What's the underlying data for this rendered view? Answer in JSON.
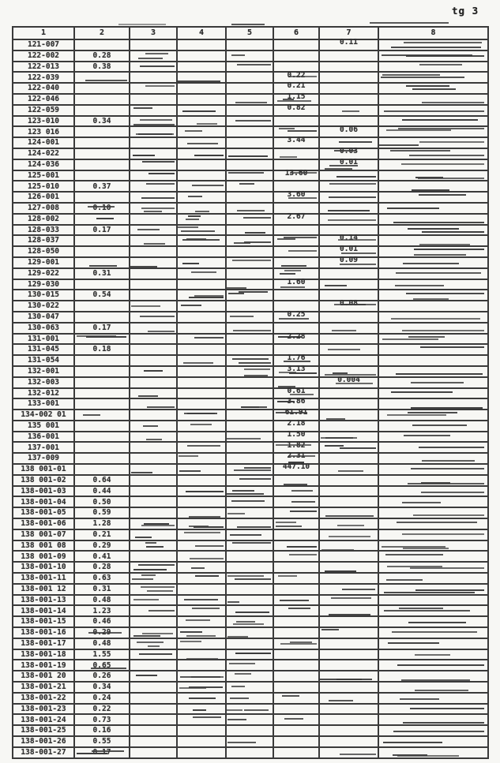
{
  "page": {
    "corner_label": "tg 3"
  },
  "table": {
    "headers": [
      "1",
      "2",
      "3",
      "4",
      "5",
      "6",
      "7",
      "8"
    ],
    "rows": [
      {
        "id": "121-007",
        "c2": "",
        "c6": "",
        "c7": "0.11"
      },
      {
        "id": "122-002",
        "c2": "0.28",
        "c6": "",
        "c7": ""
      },
      {
        "id": "122-013",
        "c2": "0.38",
        "c6": "",
        "c7": ""
      },
      {
        "id": "122-039",
        "c2": "",
        "c6": "0.22",
        "c7": ""
      },
      {
        "id": "122-040",
        "c2": "",
        "c6": "0.21",
        "c7": ""
      },
      {
        "id": "122-046",
        "c2": "",
        "c6": "1.15",
        "c7": ""
      },
      {
        "id": "122-059",
        "c2": "",
        "c6": "0.82",
        "c7": ""
      },
      {
        "id": "123-010",
        "c2": "0.34",
        "c6": "",
        "c7": ""
      },
      {
        "id": "123 016",
        "c2": "",
        "c6": "",
        "c7": "0.06"
      },
      {
        "id": "124-001",
        "c2": "",
        "c6": "3.44",
        "c7": ""
      },
      {
        "id": "124-022",
        "c2": "",
        "c6": "",
        "c7": "0.03"
      },
      {
        "id": "124-036",
        "c2": "",
        "c6": "",
        "c7": "0.01"
      },
      {
        "id": "125-001",
        "c2": "",
        "c6": "13.60",
        "c7": ""
      },
      {
        "id": "125-010",
        "c2": "0.37",
        "c6": "",
        "c7": ""
      },
      {
        "id": "126-001",
        "c2": "",
        "c6": "3.60",
        "c7": ""
      },
      {
        "id": "127-008",
        "c2": "0.10",
        "c6": "",
        "c7": ""
      },
      {
        "id": "128-002",
        "c2": "",
        "c6": "2.67",
        "c7": ""
      },
      {
        "id": "128-033",
        "c2": "0.17",
        "c6": "",
        "c7": ""
      },
      {
        "id": "128-037",
        "c2": "",
        "c6": "",
        "c7": "0.14"
      },
      {
        "id": "128-050",
        "c2": "",
        "c6": "",
        "c7": "0.01"
      },
      {
        "id": "129-001",
        "c2": "",
        "c6": "",
        "c7": "0.09"
      },
      {
        "id": "129-022",
        "c2": "0.31",
        "c6": "",
        "c7": ""
      },
      {
        "id": "129-030",
        "c2": "",
        "c6": "1.60",
        "c7": ""
      },
      {
        "id": "130-015",
        "c2": "0.54",
        "c6": "",
        "c7": ""
      },
      {
        "id": "130-022",
        "c2": "",
        "c6": "",
        "c7": "0.08"
      },
      {
        "id": "130-047",
        "c2": "",
        "c6": "0.25",
        "c7": ""
      },
      {
        "id": "130-063",
        "c2": "0.17",
        "c6": "",
        "c7": ""
      },
      {
        "id": "131-001",
        "c2": "",
        "c6": "2.28",
        "c7": ""
      },
      {
        "id": "131-045",
        "c2": "0.18",
        "c6": "",
        "c7": ""
      },
      {
        "id": "131-054",
        "c2": "",
        "c6": "1.76",
        "c7": ""
      },
      {
        "id": "132-001",
        "c2": "",
        "c6": "3.13",
        "c7": ""
      },
      {
        "id": "132-003",
        "c2": "",
        "c6": "",
        "c7": "0.004"
      },
      {
        "id": "132-012",
        "c2": "",
        "c6": "0.61",
        "c7": ""
      },
      {
        "id": "133-001",
        "c2": "",
        "c6": "3.86",
        "c7": ""
      },
      {
        "id": "134-002 01",
        "c2": "",
        "c6": "61.91",
        "c7": ""
      },
      {
        "id": "135 001",
        "c2": "",
        "c6": "2.18",
        "c7": ""
      },
      {
        "id": "136-001",
        "c2": "",
        "c6": "1.50",
        "c7": ""
      },
      {
        "id": "137-001",
        "c2": "",
        "c6": "1.82",
        "c7": ""
      },
      {
        "id": "137-009",
        "c2": "",
        "c6": "2.31",
        "c7": ""
      },
      {
        "id": "138 001-01",
        "c2": "",
        "c6": "447.10",
        "c7": ""
      },
      {
        "id": "138 001-02",
        "c2": "0.64",
        "c6": "",
        "c7": ""
      },
      {
        "id": "138-001-03",
        "c2": "0.44",
        "c6": "",
        "c7": ""
      },
      {
        "id": "138-001-04",
        "c2": "0.50",
        "c6": "",
        "c7": ""
      },
      {
        "id": "138-001-05",
        "c2": "0.59",
        "c6": "",
        "c7": ""
      },
      {
        "id": "138-001-06",
        "c2": "1.28",
        "c6": "",
        "c7": ""
      },
      {
        "id": "138 001-07",
        "c2": "0.21",
        "c6": "",
        "c7": ""
      },
      {
        "id": "138 001 08",
        "c2": "0.29",
        "c6": "",
        "c7": ""
      },
      {
        "id": "138 001-09",
        "c2": "0.41",
        "c6": "",
        "c7": ""
      },
      {
        "id": "138-001-10",
        "c2": "0.28",
        "c6": "",
        "c7": ""
      },
      {
        "id": "138-001-11",
        "c2": "0.63",
        "c6": "",
        "c7": ""
      },
      {
        "id": "138-001 12",
        "c2": "0.31",
        "c6": "",
        "c7": ""
      },
      {
        "id": "138-001-13",
        "c2": "0.48",
        "c6": "",
        "c7": ""
      },
      {
        "id": "138-001-14",
        "c2": "1.23",
        "c6": "",
        "c7": ""
      },
      {
        "id": "138-001-15",
        "c2": "0.46",
        "c6": "",
        "c7": ""
      },
      {
        "id": "138-001-16",
        "c2": "0.29",
        "c6": "",
        "c7": ""
      },
      {
        "id": "138-001-17",
        "c2": "0.48",
        "c6": "",
        "c7": ""
      },
      {
        "id": "138-001-18",
        "c2": "1.55",
        "c6": "",
        "c7": ""
      },
      {
        "id": "138-001-19",
        "c2": "0.65",
        "c6": "",
        "c7": ""
      },
      {
        "id": "138-001 20",
        "c2": "0.26",
        "c6": "",
        "c7": ""
      },
      {
        "id": "138-001-21",
        "c2": "0.34",
        "c6": "",
        "c7": ""
      },
      {
        "id": "138-001-22",
        "c2": "0.24",
        "c6": "",
        "c7": ""
      },
      {
        "id": "138-001-23",
        "c2": "0.22",
        "c6": "",
        "c7": ""
      },
      {
        "id": "138-001-24",
        "c2": "0.73",
        "c6": "",
        "c7": ""
      },
      {
        "id": "138-001-25",
        "c2": "0.16",
        "c6": "",
        "c7": ""
      },
      {
        "id": "138-001-26",
        "c2": "0.55",
        "c6": "",
        "c7": ""
      },
      {
        "id": "138-001-27",
        "c2": "0.17",
        "c6": "",
        "c7": ""
      }
    ]
  }
}
